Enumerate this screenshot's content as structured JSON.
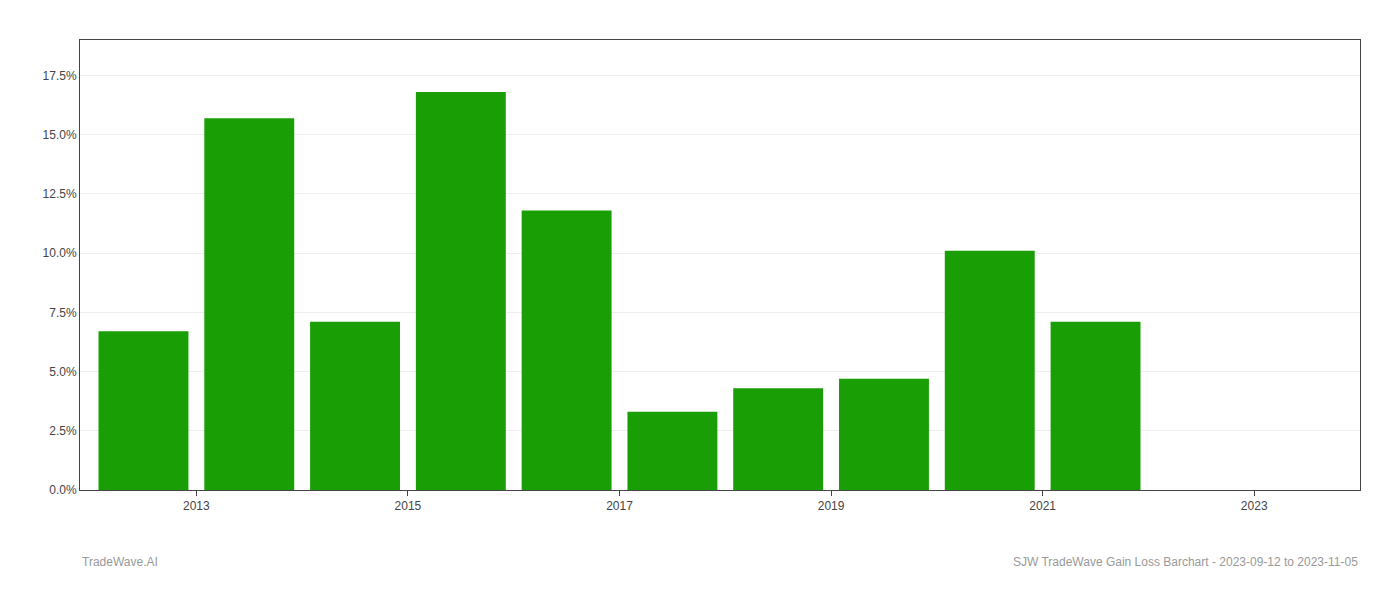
{
  "chart_data": {
    "type": "bar",
    "x": [
      2013,
      2014,
      2015,
      2016,
      2017,
      2018,
      2019,
      2020,
      2021,
      2022
    ],
    "values": [
      0.067,
      0.157,
      0.071,
      0.168,
      0.118,
      0.033,
      0.043,
      0.047,
      0.101,
      0.071
    ],
    "color": "#1a9e06",
    "xlim": [
      2012.4,
      2024.5
    ],
    "xticks": [
      {
        "value": 2013.5,
        "label": "2013"
      },
      {
        "value": 2015.5,
        "label": "2015"
      },
      {
        "value": 2017.5,
        "label": "2017"
      },
      {
        "value": 2019.5,
        "label": "2019"
      },
      {
        "value": 2021.5,
        "label": "2021"
      },
      {
        "value": 2023.5,
        "label": "2023"
      }
    ],
    "ylim": [
      0,
      0.19
    ],
    "yticks": [
      {
        "value": 0.0,
        "label": "0.0%"
      },
      {
        "value": 0.025,
        "label": "2.5%"
      },
      {
        "value": 0.05,
        "label": "5.0%"
      },
      {
        "value": 0.075,
        "label": "7.5%"
      },
      {
        "value": 0.1,
        "label": "10.0%"
      },
      {
        "value": 0.125,
        "label": "12.5%"
      },
      {
        "value": 0.15,
        "label": "15.0%"
      },
      {
        "value": 0.175,
        "label": "17.5%"
      }
    ],
    "grid": true,
    "annotations": [
      "TradeWave.AI",
      "SJW TradeWave Gain Loss Barchart - 2023-09-12 to 2023-11-05"
    ]
  }
}
